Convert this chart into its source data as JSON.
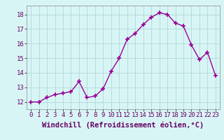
{
  "x": [
    0,
    1,
    2,
    3,
    4,
    5,
    6,
    7,
    8,
    9,
    10,
    11,
    12,
    13,
    14,
    15,
    16,
    17,
    18,
    19,
    20,
    21,
    22,
    23
  ],
  "y": [
    12.0,
    12.0,
    12.3,
    12.5,
    12.6,
    12.7,
    13.4,
    12.3,
    12.4,
    12.9,
    14.1,
    15.0,
    16.3,
    16.7,
    17.3,
    17.8,
    18.1,
    18.0,
    17.4,
    17.2,
    15.9,
    14.9,
    15.4,
    13.8
  ],
  "line_color": "#990099",
  "marker": "+",
  "marker_size": 4,
  "marker_lw": 1.2,
  "bg_color": "#d8f5f5",
  "grid_color": "#b0d8d8",
  "xlabel": "Windchill (Refroidissement éolien,°C)",
  "xlabel_fontsize": 7.5,
  "tick_fontsize": 6.5,
  "ylim": [
    11.5,
    18.6
  ],
  "xlim": [
    -0.5,
    23.5
  ],
  "yticks": [
    12,
    13,
    14,
    15,
    16,
    17,
    18
  ],
  "xticks": [
    0,
    1,
    2,
    3,
    4,
    5,
    6,
    7,
    8,
    9,
    10,
    11,
    12,
    13,
    14,
    15,
    16,
    17,
    18,
    19,
    20,
    21,
    22,
    23
  ]
}
